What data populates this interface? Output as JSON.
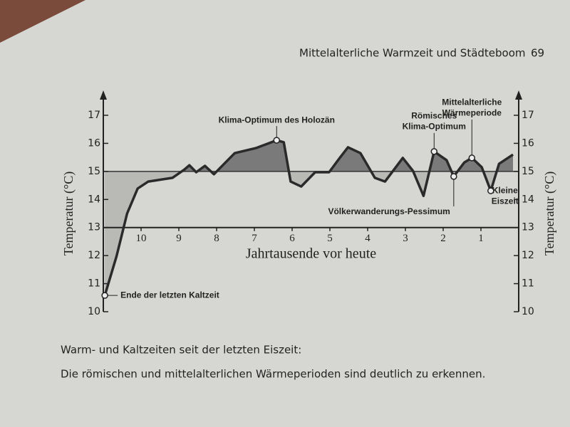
{
  "header": {
    "title": "Mittelalterliche Warmzeit und Städteboom",
    "page": "69"
  },
  "chart_data": {
    "type": "line",
    "x_label": "Jahrtausende vor heute",
    "y_label": "Temperatur (°C)",
    "y2_label": "Temperatur (°C)",
    "x": [
      10.96,
      10.65,
      10.37,
      10.09,
      9.81,
      9.17,
      8.85,
      8.72,
      8.54,
      8.31,
      8.07,
      7.8,
      7.52,
      6.96,
      6.41,
      6.22,
      6.04,
      5.76,
      5.39,
      5.02,
      4.74,
      4.52,
      4.19,
      3.81,
      3.54,
      3.07,
      2.8,
      2.52,
      2.24,
      1.91,
      1.72,
      1.44,
      1.24,
      0.98,
      0.74,
      0.52,
      0.15
    ],
    "series": [
      {
        "color": "#2a2a2a",
        "values": [
          10.58,
          11.97,
          13.5,
          14.39,
          14.64,
          14.77,
          15.07,
          15.22,
          14.97,
          15.2,
          14.9,
          15.27,
          15.65,
          15.83,
          16.11,
          16.04,
          14.64,
          14.46,
          14.97,
          14.97,
          15.48,
          15.86,
          15.65,
          14.77,
          14.64,
          15.48,
          15.02,
          14.13,
          15.71,
          15.4,
          14.82,
          15.32,
          15.48,
          15.15,
          14.31,
          15.27,
          15.6
        ]
      }
    ],
    "xlim": [
      11,
      0
    ],
    "xticks": [
      10,
      9,
      8,
      7,
      6,
      5,
      4,
      3,
      2,
      1
    ],
    "ylim": [
      10,
      17
    ],
    "yticks": [
      10,
      11,
      12,
      13,
      14,
      15,
      16,
      17
    ],
    "y2lim": [
      10,
      17
    ],
    "y2ticks": [
      10,
      11,
      12,
      13,
      14,
      15,
      16,
      17
    ],
    "x_axis_at": 13,
    "reference_line": 15,
    "fill_above": "#7a7a7a",
    "fill_below": "#b9b9b6",
    "annotations": [
      {
        "text": [
          "Klima-Optimum des Holozän"
        ],
        "x": 6.41,
        "y": 16.11
      },
      {
        "text": [
          "Römisches",
          "Klima-Optimum"
        ],
        "x": 2.24,
        "y": 15.71
      },
      {
        "text": [
          "Mittelalterliche",
          "Wärmeperiode"
        ],
        "x": 1.24,
        "y": 15.48
      },
      {
        "text": [
          "Völkerwanderungs-Pessimum"
        ],
        "x": 1.72,
        "y": 14.82
      },
      {
        "text": [
          "Kleine",
          "Eiszeit"
        ],
        "x": 0.74,
        "y": 14.31
      },
      {
        "text": [
          "Ende der letzten Kaltzeit"
        ],
        "x": 10.96,
        "y": 10.58
      }
    ]
  },
  "caption": [
    "Warm- und Kaltzeiten seit der letzten Eiszeit:",
    "Die römischen und mittelalterlichen Wärmeperioden sind deutlich zu erkennen."
  ]
}
